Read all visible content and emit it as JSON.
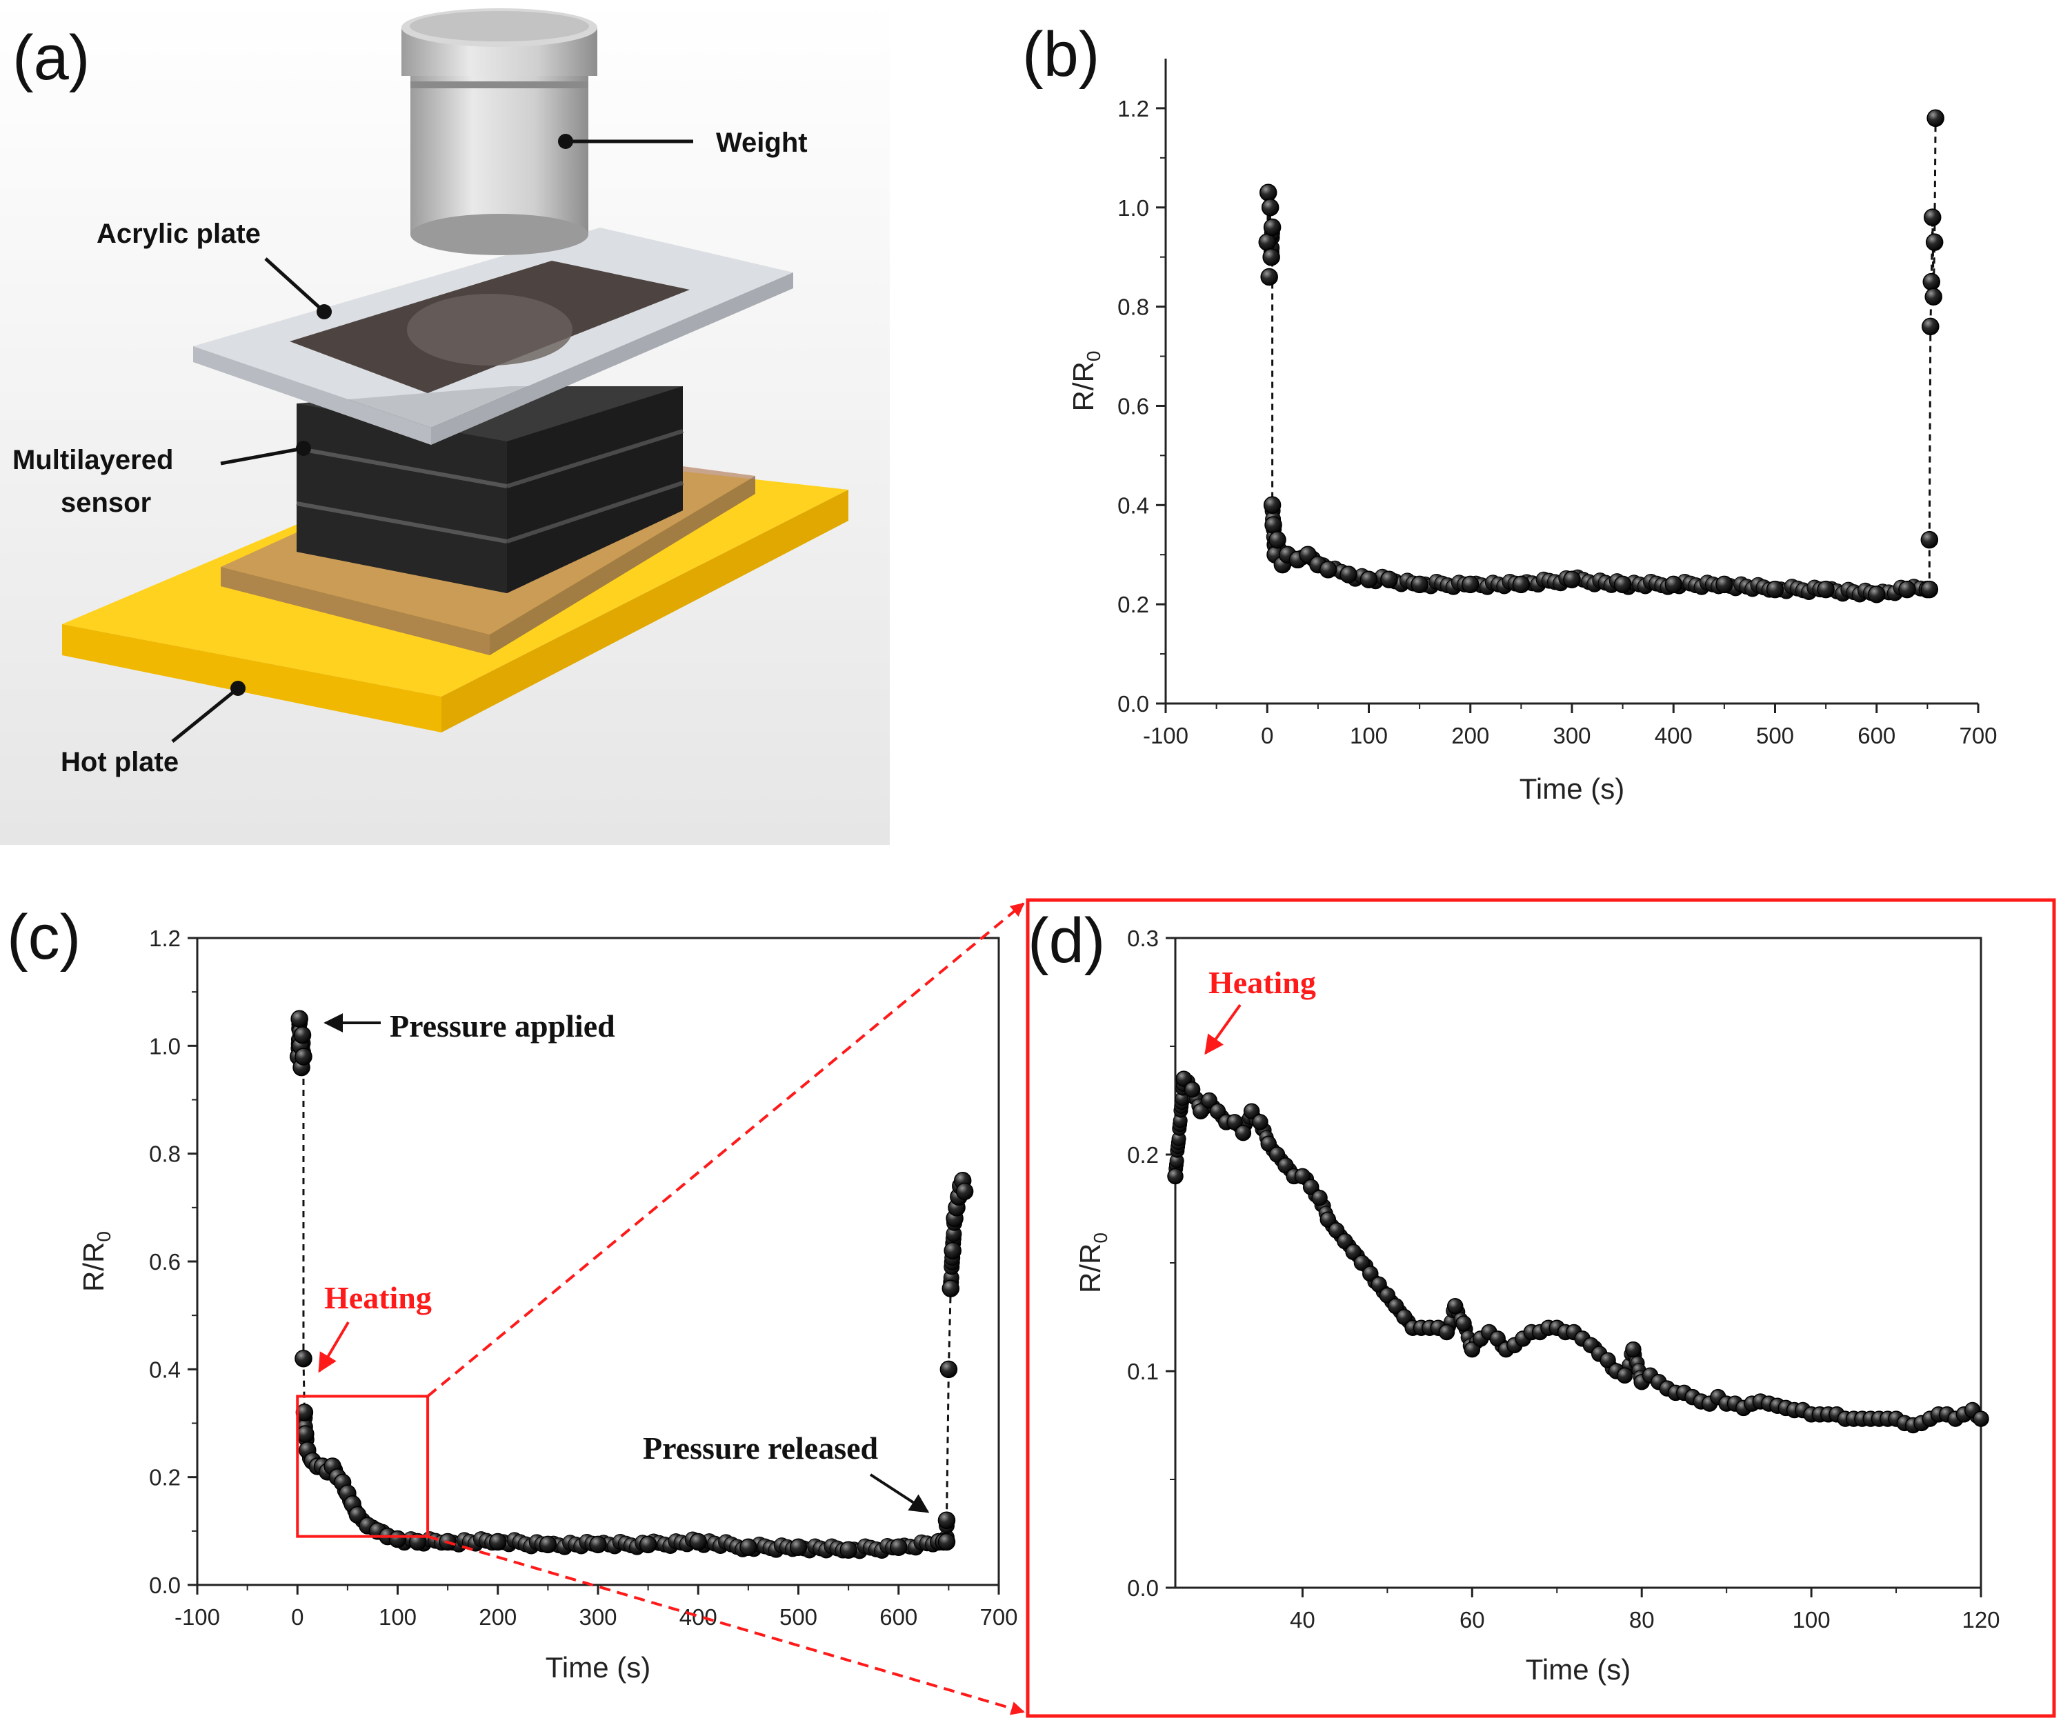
{
  "panels": {
    "a": {
      "letter": "(a)"
    },
    "b": {
      "letter": "(b)"
    },
    "c": {
      "letter": "(c)"
    },
    "d": {
      "letter": "(d)"
    }
  },
  "schematic": {
    "labels": {
      "weight": "Weight",
      "acrylic_plate": "Acrylic plate",
      "sensor_line1": "Multilayered",
      "sensor_line2": "sensor",
      "hot_plate": "Hot plate"
    },
    "colors": {
      "hot_plate": "#ffd21f",
      "acrylic": "#d6d9de",
      "sensor": "#2e2e2e",
      "weight": "#c8c8c8"
    }
  },
  "annotations": {
    "pressure_applied": "Pressure applied",
    "pressure_released": "Pressure released",
    "heating_c": "Heating",
    "heating_d": "Heating"
  },
  "colors": {
    "highlight": "#ff1a1a",
    "marker": "#111111"
  },
  "chart_data": [
    {
      "id": "b",
      "type": "scatter",
      "title": "",
      "xlabel": "Time (s)",
      "ylabel": "R/R0",
      "ylabel_main": "R/R",
      "ylabel_sub": "0",
      "xlim": [
        -100,
        700
      ],
      "ylim": [
        0.0,
        1.3
      ],
      "xticks": [
        -100,
        0,
        100,
        200,
        300,
        400,
        500,
        600,
        700
      ],
      "yticks": [
        0.0,
        0.2,
        0.4,
        0.6,
        0.8,
        1.0,
        1.2
      ],
      "xtick_labels": [
        "-100",
        "0",
        "100",
        "200",
        "300",
        "400",
        "500",
        "600",
        "700"
      ],
      "ytick_labels": [
        "0.0",
        "0.2",
        "0.4",
        "0.6",
        "0.8",
        "1.0",
        "1.2"
      ],
      "connect_jumps": true,
      "series": [
        {
          "name": "R/R0",
          "x": [
            0,
            1,
            2,
            3,
            4,
            5,
            5,
            6,
            8,
            10,
            15,
            20,
            30,
            40,
            50,
            60,
            80,
            100,
            120,
            150,
            200,
            250,
            300,
            350,
            400,
            450,
            500,
            550,
            600,
            630,
            650,
            652,
            652,
            653,
            654,
            655,
            656,
            657,
            658
          ],
          "y": [
            0.93,
            1.03,
            0.86,
            1.0,
            0.9,
            0.96,
            0.4,
            0.36,
            0.3,
            0.33,
            0.28,
            0.3,
            0.29,
            0.3,
            0.28,
            0.27,
            0.26,
            0.25,
            0.25,
            0.24,
            0.24,
            0.24,
            0.25,
            0.24,
            0.24,
            0.24,
            0.23,
            0.23,
            0.22,
            0.23,
            0.23,
            0.23,
            0.33,
            0.76,
            0.85,
            0.98,
            0.82,
            0.93,
            1.18
          ]
        }
      ]
    },
    {
      "id": "c",
      "type": "scatter",
      "title": "",
      "xlabel": "Time (s)",
      "ylabel": "R/R0",
      "ylabel_main": "R/R",
      "ylabel_sub": "0",
      "xlim": [
        -100,
        700
      ],
      "ylim": [
        0.0,
        1.2
      ],
      "xticks": [
        -100,
        0,
        100,
        200,
        300,
        400,
        500,
        600,
        700
      ],
      "yticks": [
        0.0,
        0.2,
        0.4,
        0.6,
        0.8,
        1.0,
        1.2
      ],
      "xtick_labels": [
        "-100",
        "0",
        "100",
        "200",
        "300",
        "400",
        "500",
        "600",
        "700"
      ],
      "ytick_labels": [
        "0.0",
        "0.2",
        "0.4",
        "0.6",
        "0.8",
        "1.0",
        "1.2"
      ],
      "connect_jumps": true,
      "series": [
        {
          "name": "R/R0",
          "x": [
            1,
            2,
            3,
            4,
            5,
            6,
            6,
            7,
            8,
            10,
            15,
            20,
            25,
            30,
            35,
            40,
            45,
            50,
            55,
            60,
            70,
            80,
            90,
            100,
            120,
            150,
            200,
            250,
            300,
            350,
            400,
            450,
            500,
            550,
            600,
            640,
            645,
            648,
            648,
            650,
            652,
            654,
            656,
            658,
            660,
            662,
            664,
            666
          ],
          "y": [
            0.98,
            1.05,
            1.0,
            0.96,
            1.02,
            0.98,
            0.42,
            0.32,
            0.28,
            0.25,
            0.23,
            0.22,
            0.22,
            0.21,
            0.22,
            0.2,
            0.19,
            0.17,
            0.15,
            0.13,
            0.11,
            0.1,
            0.09,
            0.085,
            0.08,
            0.08,
            0.08,
            0.075,
            0.075,
            0.075,
            0.08,
            0.07,
            0.07,
            0.065,
            0.07,
            0.08,
            0.08,
            0.08,
            0.12,
            0.4,
            0.55,
            0.62,
            0.68,
            0.7,
            0.72,
            0.74,
            0.75,
            0.73
          ]
        }
      ],
      "inset_box": {
        "xlim": [
          0,
          130
        ],
        "ylim": [
          0.09,
          0.35
        ]
      }
    },
    {
      "id": "d",
      "type": "scatter",
      "title": "",
      "xlabel": "Time (s)",
      "ylabel": "R/R0",
      "ylabel_main": "R/R",
      "ylabel_sub": "0",
      "xlim": [
        25,
        120
      ],
      "ylim": [
        0.0,
        0.3
      ],
      "xticks": [
        40,
        60,
        80,
        100,
        120
      ],
      "yticks": [
        0.0,
        0.1,
        0.2,
        0.3
      ],
      "xtick_labels": [
        "40",
        "60",
        "80",
        "100",
        "120"
      ],
      "ytick_labels": [
        "0.0",
        "0.1",
        "0.2",
        "0.3"
      ],
      "connect_jumps": false,
      "series": [
        {
          "name": "R/R0",
          "x": [
            25,
            26,
            27,
            28,
            29,
            30,
            31,
            32,
            33,
            34,
            35,
            36,
            37,
            38,
            39,
            40,
            41,
            42,
            43,
            44,
            45,
            46,
            47,
            48,
            49,
            50,
            51,
            52,
            53,
            54,
            55,
            56,
            57,
            58,
            59,
            60,
            61,
            62,
            63,
            64,
            65,
            66,
            67,
            68,
            69,
            70,
            71,
            72,
            73,
            74,
            75,
            76,
            77,
            78,
            79,
            80,
            81,
            82,
            83,
            84,
            85,
            86,
            87,
            88,
            89,
            90,
            91,
            92,
            93,
            94,
            95,
            96,
            97,
            98,
            99,
            100,
            101,
            102,
            103,
            104,
            105,
            106,
            107,
            108,
            109,
            110,
            111,
            112,
            113,
            114,
            115,
            116,
            117,
            118,
            119,
            120
          ],
          "y": [
            0.19,
            0.235,
            0.23,
            0.22,
            0.225,
            0.22,
            0.215,
            0.215,
            0.21,
            0.22,
            0.215,
            0.205,
            0.2,
            0.195,
            0.19,
            0.19,
            0.185,
            0.18,
            0.17,
            0.165,
            0.16,
            0.155,
            0.15,
            0.145,
            0.14,
            0.135,
            0.13,
            0.125,
            0.12,
            0.12,
            0.12,
            0.12,
            0.118,
            0.13,
            0.122,
            0.11,
            0.115,
            0.118,
            0.115,
            0.11,
            0.112,
            0.115,
            0.118,
            0.118,
            0.12,
            0.12,
            0.118,
            0.118,
            0.115,
            0.112,
            0.108,
            0.105,
            0.1,
            0.098,
            0.11,
            0.095,
            0.098,
            0.095,
            0.092,
            0.09,
            0.09,
            0.088,
            0.086,
            0.085,
            0.088,
            0.085,
            0.085,
            0.083,
            0.085,
            0.086,
            0.085,
            0.084,
            0.083,
            0.082,
            0.082,
            0.08,
            0.08,
            0.08,
            0.08,
            0.078,
            0.078,
            0.078,
            0.078,
            0.078,
            0.078,
            0.078,
            0.076,
            0.075,
            0.076,
            0.078,
            0.08,
            0.08,
            0.078,
            0.08,
            0.082,
            0.078
          ]
        }
      ]
    }
  ]
}
